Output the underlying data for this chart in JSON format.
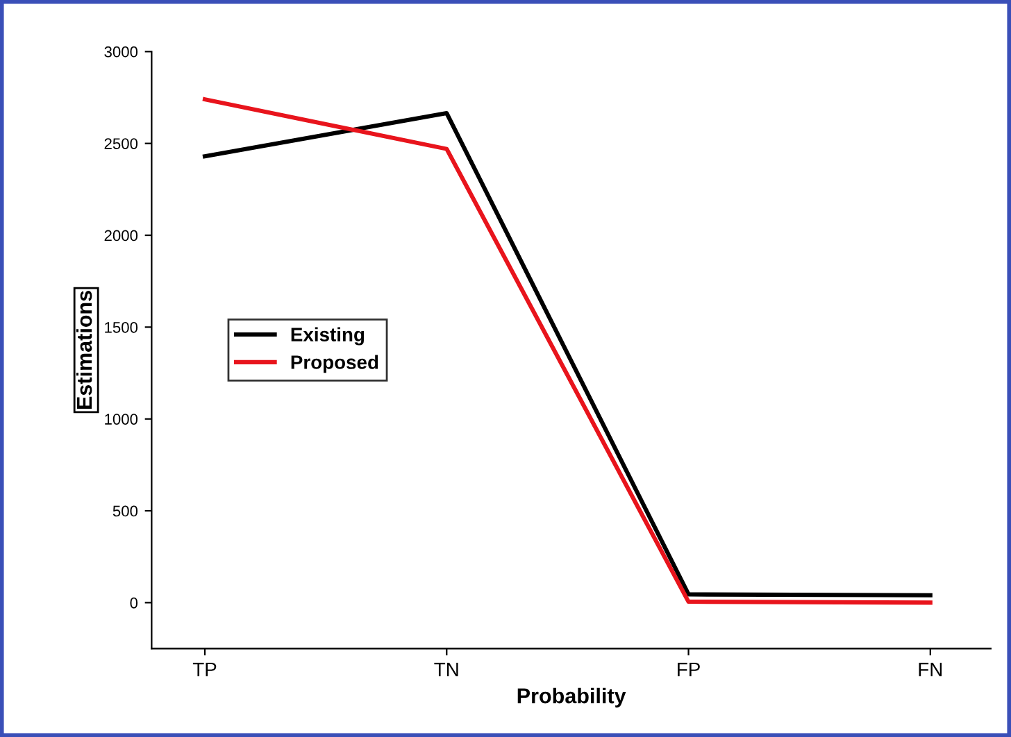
{
  "chart_data": {
    "type": "line",
    "xlabel": "Probability",
    "ylabel": "Estimations",
    "categories": [
      "TP",
      "TN",
      "FP",
      "FN"
    ],
    "series": [
      {
        "name": "Existing",
        "color": "#000000",
        "values": [
          2430,
          2665,
          45,
          40
        ]
      },
      {
        "name": "Proposed",
        "color": "#e8141c",
        "values": [
          2740,
          2470,
          5,
          0
        ]
      }
    ],
    "ylim": [
      -250,
      3000
    ],
    "yticks": [
      0,
      500,
      1000,
      1500,
      2000,
      2500,
      3000
    ],
    "grid": false,
    "legend": "left",
    "marker": "none",
    "line_style": "solid"
  }
}
